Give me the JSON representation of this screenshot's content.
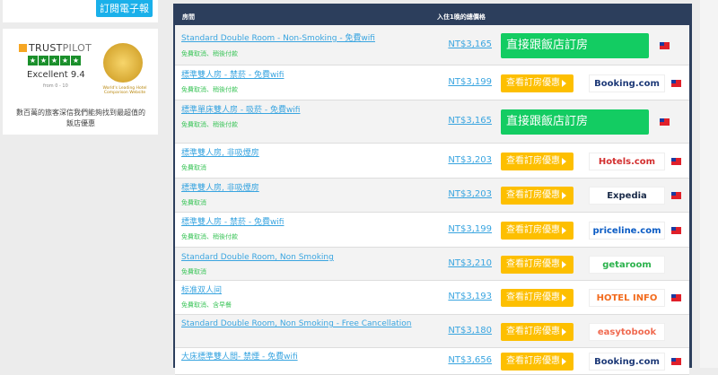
{
  "sidebar": {
    "subscribe": "訂閱電子報",
    "trustpilot": {
      "brand_a": "TRUST",
      "brand_b": "PILOT",
      "rating": "Excellent 9.4",
      "scale": "from 0 - 10"
    },
    "award": "World's Leading Hotel Comparison Website",
    "tagline": "數百萬的旅客深信我們能夠找到最超值的飯店優惠"
  },
  "table": {
    "col_room": "房間",
    "col_price": "入住1晚的總價格",
    "rows": [
      {
        "name": "Standard Double Room - Non-Smoking - 免費wifi",
        "note": "免費取消、稍後付款",
        "price": "NT$3,165",
        "button": "直接跟飯店訂房",
        "type": "direct",
        "flag": true
      },
      {
        "name": "標準雙人房 - 禁菸 - 免費wifi",
        "note": "免費取消、稍後付款",
        "price": "NT$3,199",
        "button": "查看訂房優惠",
        "provider": "Booking.com",
        "provider_color": "#1e3a78",
        "flag": true
      },
      {
        "name": "標準單床雙人房 - 吸菸 - 免費wifi",
        "note": "免費取消、稍後付款",
        "price": "NT$3,165",
        "button": "直接跟飯店訂房",
        "type": "direct",
        "flag": true
      },
      {
        "name": "標準雙人房, 非吸煙房",
        "note": "免費取消",
        "price": "NT$3,203",
        "button": "查看訂房優惠",
        "provider": "Hotels.com",
        "provider_color": "#d32f2f",
        "flag": true
      },
      {
        "name": "標準雙人房, 非吸煙房",
        "note": "免費取消",
        "price": "NT$3,203",
        "button": "查看訂房優惠",
        "provider": "Expedia",
        "provider_color": "#1a2b49",
        "flag": true
      },
      {
        "name": "標準雙人房 - 禁菸 - 免費wifi",
        "note": "免費取消、稍後付款",
        "price": "NT$3,199",
        "button": "查看訂房優惠",
        "provider": "priceline.com",
        "provider_color": "#0a5bc4",
        "flag": true
      },
      {
        "name": "Standard Double Room, Non Smoking",
        "note": "免費取消",
        "price": "NT$3,210",
        "button": "查看訂房優惠",
        "provider": "getaroom",
        "provider_color": "#2bb24c",
        "flag": false
      },
      {
        "name": "标准双人间",
        "note": "免費取消、含早餐",
        "price": "NT$3,193",
        "button": "查看訂房優惠",
        "provider": "HOTEL INFO",
        "provider_color": "#f26b1d",
        "flag": true
      },
      {
        "name": "Standard Double Room, Non Smoking - Free Cancellation",
        "note": "",
        "price": "NT$3,180",
        "button": "查看訂房優惠",
        "provider": "easytobook",
        "provider_color": "#f06a50",
        "flag": false
      },
      {
        "name": "大床標準雙人間- 禁煙 - 免費wifi",
        "note": "",
        "price": "NT$3,656",
        "button": "查看訂房優惠",
        "provider": "Booking.com",
        "provider_color": "#1e3a78",
        "flag": true
      }
    ]
  }
}
